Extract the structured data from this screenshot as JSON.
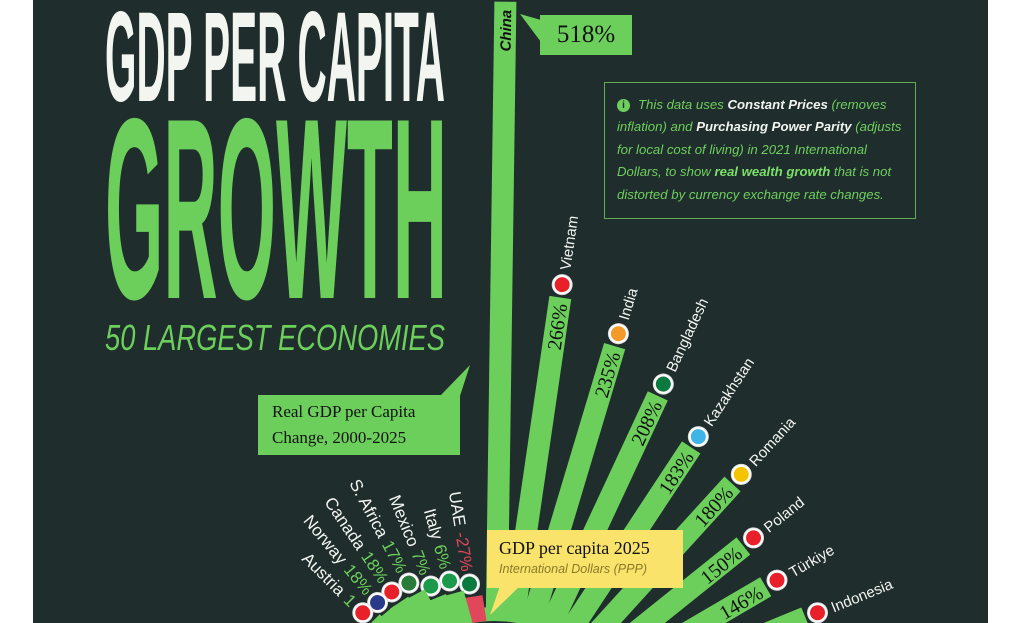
{
  "title": {
    "line1": "GDP PER CAPITA",
    "line2": "GROWTH",
    "subtitle": "50 LARGEST ECONOMIES"
  },
  "info_box": {
    "icon": "info-icon",
    "p1": "This data uses ",
    "b1": "Constant Prices",
    "p2": " (removes inflation) and ",
    "b2": "Purchasing Power Parity",
    "p3": " (adjusts for local cost of living) in 2021 International Dollars, to show ",
    "b3": "real wealth growth",
    "p4": " that is not distorted by currency exchange rate changes."
  },
  "callouts": {
    "change_line1": "Real GDP per Capita",
    "change_line2": "Change, 2000-2025",
    "gdp_title": "GDP per capita 2025",
    "gdp_sub": "International Dollars (PPP)",
    "china_pct": "518%"
  },
  "colors": {
    "background": "#1f2d2c",
    "positive": "#6ccf5c",
    "negative": "#e0475a",
    "highlight": "#f9e36b"
  },
  "chart_data": {
    "type": "bar",
    "layout": "radial",
    "title": "Real GDP per Capita Change, 2000-2025",
    "unit": "%",
    "categories": [
      "China",
      "Vietnam",
      "India",
      "Bangladesh",
      "Kazakhstan",
      "Romania",
      "Poland",
      "Türkiye",
      "Indonesia",
      "UAE",
      "Italy",
      "Mexico",
      "S. Africa",
      "Canada",
      "Norway",
      "Austria"
    ],
    "values": [
      518,
      266,
      235,
      208,
      183,
      180,
      150,
      146,
      null,
      -27,
      6,
      7,
      17,
      18,
      18,
      null
    ],
    "labels": [
      "518%",
      "266%",
      "235%",
      "208%",
      "183%",
      "180%",
      "150%",
      "146%",
      "",
      "-27%",
      "6%",
      "7%",
      "17%",
      "18%",
      "18%",
      "1"
    ]
  }
}
